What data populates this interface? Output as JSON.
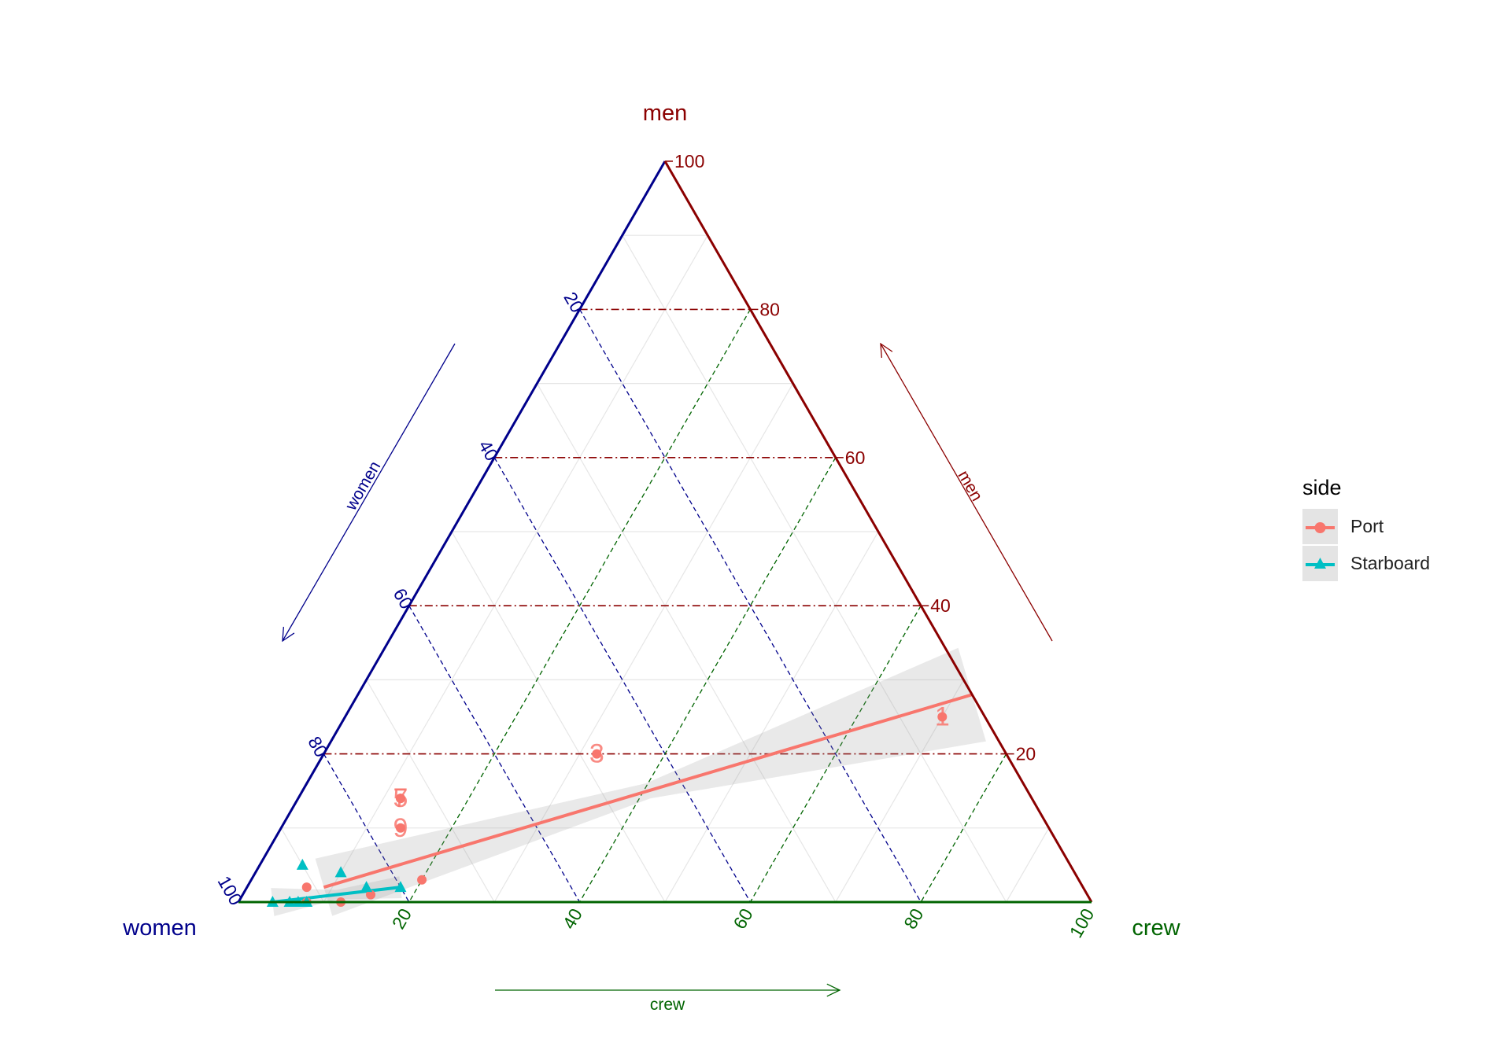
{
  "chart_data": {
    "type": "ternary",
    "axes": {
      "top": {
        "name": "men",
        "arrow_label": "men",
        "color": "#8B0000",
        "ticks": [
          "20",
          "40",
          "60",
          "80",
          "100"
        ]
      },
      "left": {
        "name": "women",
        "arrow_label": "women",
        "color": "#00008B",
        "ticks": [
          "20",
          "40",
          "60",
          "80",
          "100"
        ]
      },
      "right": {
        "name": "crew",
        "arrow_label": "crew",
        "color": "#006400",
        "ticks": [
          "20",
          "40",
          "60",
          "80",
          "100"
        ]
      }
    },
    "legend": {
      "title": "side",
      "position": "right",
      "entries": [
        {
          "name": "Port",
          "color": "#F8766D",
          "shape": "circle"
        },
        {
          "name": "Starboard",
          "color": "#00BFC4",
          "shape": "triangle"
        }
      ]
    },
    "series": [
      {
        "name": "Port",
        "points": [
          {
            "men": 25,
            "women": 5,
            "crew": 70,
            "label": "1"
          },
          {
            "men": 20,
            "women": 48,
            "crew": 32,
            "label": "3"
          },
          {
            "men": 14,
            "women": 74,
            "crew": 12,
            "label": "7"
          },
          {
            "men": 14,
            "women": 74,
            "crew": 12,
            "label": "5"
          },
          {
            "men": 10,
            "women": 76,
            "crew": 14,
            "label": "9"
          },
          {
            "men": 3,
            "women": 77,
            "crew": 20
          },
          {
            "men": 2,
            "women": 91,
            "crew": 7
          },
          {
            "men": 1,
            "women": 84,
            "crew": 15
          },
          {
            "men": 0,
            "women": 92,
            "crew": 8
          },
          {
            "men": 0,
            "women": 88,
            "crew": 12
          }
        ],
        "trend": [
          {
            "men": 2,
            "women": 89,
            "crew": 9
          },
          {
            "men": 28,
            "women": 0,
            "crew": 72
          }
        ]
      },
      {
        "name": "Starboard",
        "points": [
          {
            "men": 5,
            "women": 90,
            "crew": 5
          },
          {
            "men": 4,
            "women": 86,
            "crew": 10
          },
          {
            "men": 2,
            "women": 84,
            "crew": 14
          },
          {
            "men": 2,
            "women": 80,
            "crew": 18
          },
          {
            "men": 0,
            "women": 92,
            "crew": 8
          },
          {
            "men": 0,
            "women": 93,
            "crew": 7
          },
          {
            "men": 0,
            "women": 94,
            "crew": 6
          },
          {
            "men": 0,
            "women": 96,
            "crew": 4
          }
        ],
        "trend": [
          {
            "men": 0,
            "women": 96,
            "crew": 4
          },
          {
            "men": 2,
            "women": 80,
            "crew": 18
          }
        ]
      }
    ]
  }
}
